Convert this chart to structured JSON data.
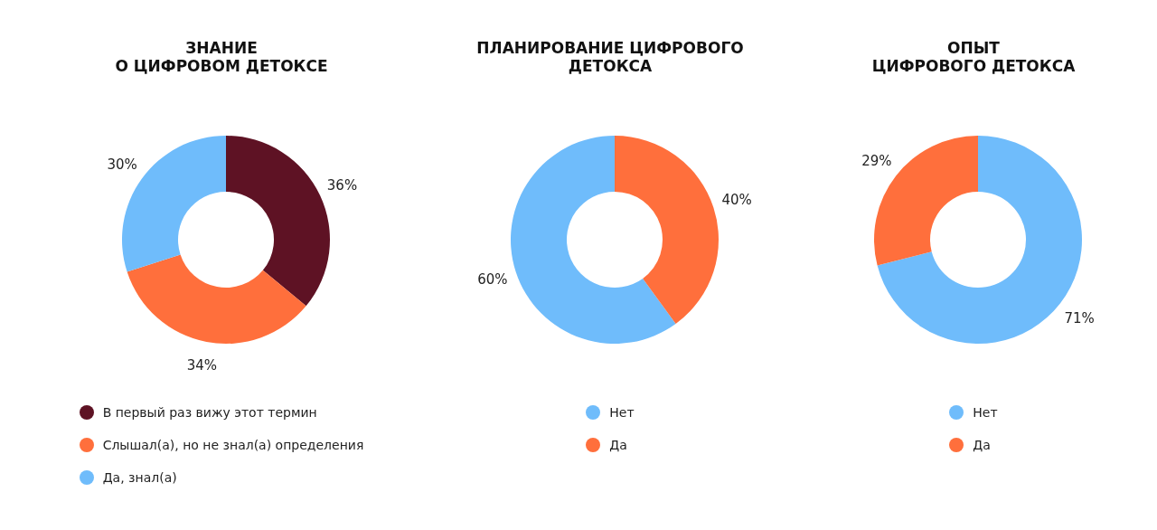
{
  "chart_data": [
    {
      "type": "donut",
      "title": "ЗНАНИЕ\nО ЦИФРОВОМ ДЕТОКСЕ",
      "categories": [
        "В первый раз вижу этот термин",
        "Слышал(а), но не знал(а) определения",
        "Да, знал(а)"
      ],
      "values": [
        36,
        34,
        30
      ],
      "colors": [
        "#5e1224",
        "#ff6f3c",
        "#6fbcfb"
      ],
      "value_labels": [
        "36%",
        "34%",
        "30%"
      ],
      "legend": "bottom"
    },
    {
      "type": "donut",
      "title": "ПЛАНИРОВАНИЕ ЦИФРОВОГО\nДЕТОКСА",
      "categories": [
        "Нет",
        "Да"
      ],
      "values": [
        60,
        40
      ],
      "colors": [
        "#6fbcfb",
        "#ff6f3c"
      ],
      "value_labels": [
        "60%",
        "40%"
      ],
      "legend": "bottom"
    },
    {
      "type": "donut",
      "title": "ОПЫТ\nЦИФРОВОГО ДЕТОКСА",
      "categories": [
        "Нет",
        "Да"
      ],
      "values": [
        71,
        29
      ],
      "colors": [
        "#6fbcfb",
        "#ff6f3c"
      ],
      "value_labels": [
        "71%",
        "29%"
      ],
      "legend": "bottom"
    }
  ]
}
